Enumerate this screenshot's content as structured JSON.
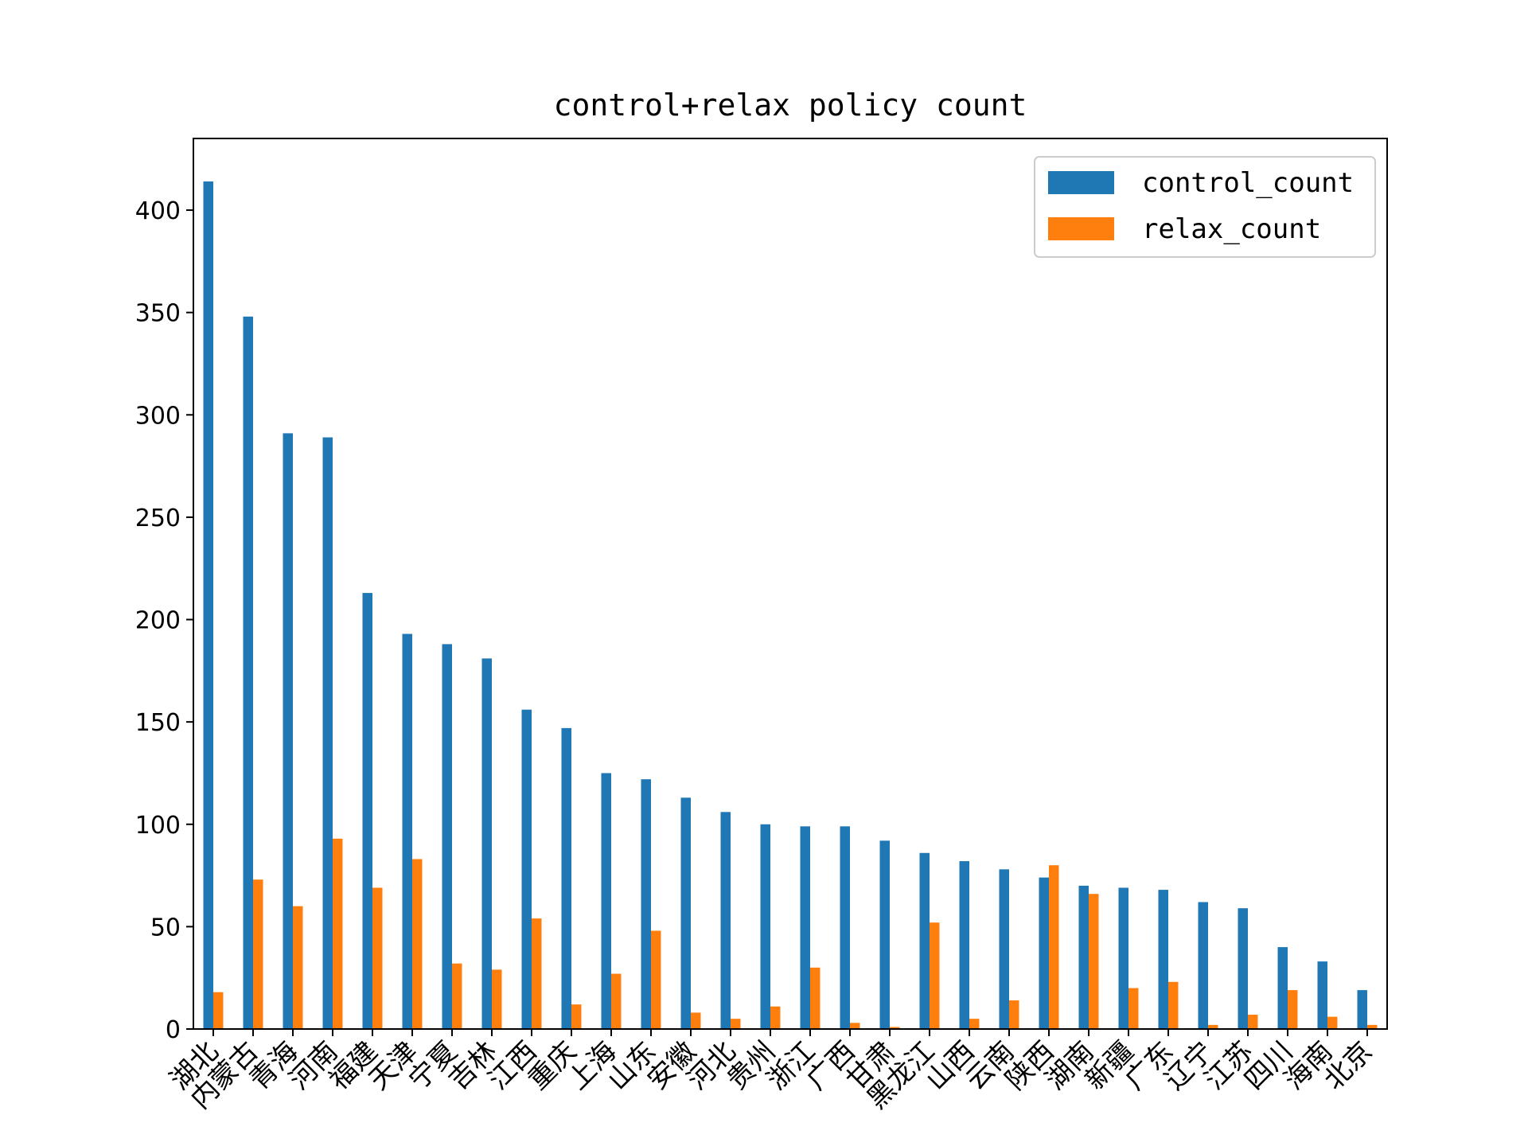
{
  "chart_data": {
    "type": "bar",
    "title": "control+relax policy count",
    "xlabel": "",
    "ylabel": "",
    "ylim": [
      0,
      435
    ],
    "yticks": [
      0,
      50,
      100,
      150,
      200,
      250,
      300,
      350,
      400
    ],
    "legend_position": "top-right",
    "grid": false,
    "categories": [
      "湖北",
      "内蒙古",
      "青海",
      "河南",
      "福建",
      "天津",
      "宁夏",
      "吉林",
      "江西",
      "重庆",
      "上海",
      "山东",
      "安徽",
      "河北",
      "贵州",
      "浙江",
      "广西",
      "甘肃",
      "黑龙江",
      "山西",
      "云南",
      "陕西",
      "湖南",
      "新疆",
      "广东",
      "辽宁",
      "江苏",
      "四川",
      "海南",
      "北京"
    ],
    "series": [
      {
        "name": "control_count",
        "color": "#1f77b4",
        "values": [
          414,
          348,
          291,
          289,
          213,
          193,
          188,
          181,
          156,
          147,
          125,
          122,
          113,
          106,
          100,
          99,
          99,
          92,
          86,
          82,
          78,
          74,
          70,
          69,
          68,
          62,
          59,
          40,
          33,
          19
        ]
      },
      {
        "name": "relax_count",
        "color": "#ff7f0e",
        "values": [
          18,
          73,
          60,
          93,
          69,
          83,
          32,
          29,
          54,
          12,
          27,
          48,
          8,
          5,
          11,
          30,
          3,
          1,
          52,
          5,
          14,
          80,
          66,
          20,
          23,
          2,
          7,
          19,
          6,
          2
        ]
      }
    ]
  }
}
